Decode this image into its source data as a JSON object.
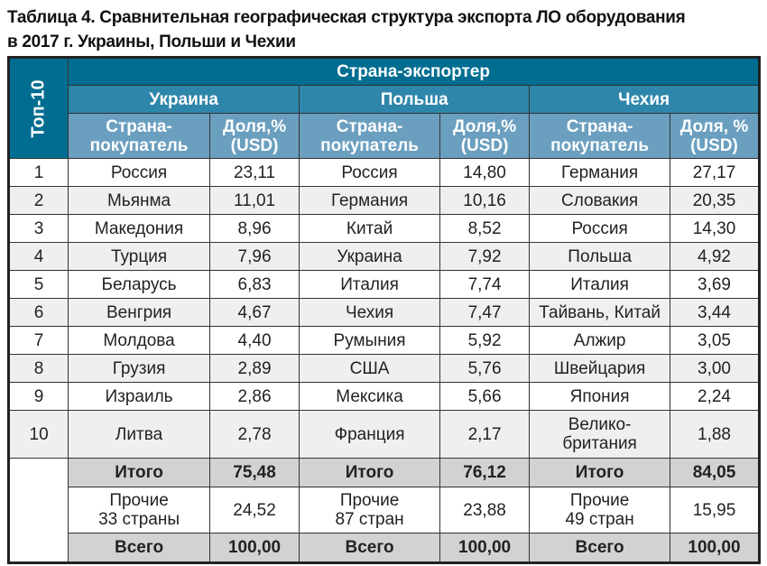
{
  "title": [
    "Таблица 4. Сравнительная географическая структура экспорта ЛО оборудования",
    "в 2017 г. Украины, Польши и Чехии"
  ],
  "header": {
    "top": "Топ-10",
    "exporter": "Страна-экспортер",
    "countries": [
      "Украина",
      "Польша",
      "Чехия"
    ],
    "col_country": [
      "Страна-",
      "покупатель"
    ],
    "col_share": [
      "Доля,%",
      "(USD)"
    ],
    "col_share_cz": [
      "Доля, %",
      "(USD)"
    ]
  },
  "rows": [
    {
      "n": "1",
      "c": [
        [
          "Россия",
          "23,11"
        ],
        [
          "Россия",
          "14,80"
        ],
        [
          "Германия",
          "27,17"
        ]
      ]
    },
    {
      "n": "2",
      "c": [
        [
          "Мьянма",
          "11,01"
        ],
        [
          "Германия",
          "10,16"
        ],
        [
          "Словакия",
          "20,35"
        ]
      ]
    },
    {
      "n": "3",
      "c": [
        [
          "Македония",
          "8,96"
        ],
        [
          "Китай",
          "8,52"
        ],
        [
          "Россия",
          "14,30"
        ]
      ]
    },
    {
      "n": "4",
      "c": [
        [
          "Турция",
          "7,96"
        ],
        [
          "Украина",
          "7,92"
        ],
        [
          "Польша",
          "4,92"
        ]
      ]
    },
    {
      "n": "5",
      "c": [
        [
          "Беларусь",
          "6,83"
        ],
        [
          "Италия",
          "7,74"
        ],
        [
          "Италия",
          "3,69"
        ]
      ]
    },
    {
      "n": "6",
      "c": [
        [
          "Венгрия",
          "4,67"
        ],
        [
          "Чехия",
          "7,47"
        ],
        [
          "Тайвань, Китай",
          "3,44"
        ]
      ]
    },
    {
      "n": "7",
      "c": [
        [
          "Молдова",
          "4,40"
        ],
        [
          "Румыния",
          "5,92"
        ],
        [
          "Алжир",
          "3,05"
        ]
      ]
    },
    {
      "n": "8",
      "c": [
        [
          "Грузия",
          "2,89"
        ],
        [
          "США",
          "5,76"
        ],
        [
          "Швейцария",
          "3,00"
        ]
      ]
    },
    {
      "n": "9",
      "c": [
        [
          "Израиль",
          "2,86"
        ],
        [
          "Мексика",
          "5,66"
        ],
        [
          "Япония",
          "2,24"
        ]
      ]
    },
    {
      "n": "10",
      "c": [
        [
          "Литва",
          "2,78"
        ],
        [
          "Франция",
          "2,17"
        ],
        [
          "Велико-\nбритания",
          "1,88"
        ]
      ]
    }
  ],
  "total": [
    [
      "Итого",
      "75,48"
    ],
    [
      "Итого",
      "76,12"
    ],
    [
      "Итого",
      "84,05"
    ]
  ],
  "others": [
    [
      "Прочие\n33 страны",
      "24,52"
    ],
    [
      "Прочие\n87 стран",
      "23,88"
    ],
    [
      "Прочие\n49 стран",
      "15,95"
    ]
  ],
  "grand": [
    [
      "Всего",
      "100,00"
    ],
    [
      "Всего",
      "100,00"
    ],
    [
      "Всего",
      "100,00"
    ]
  ]
}
